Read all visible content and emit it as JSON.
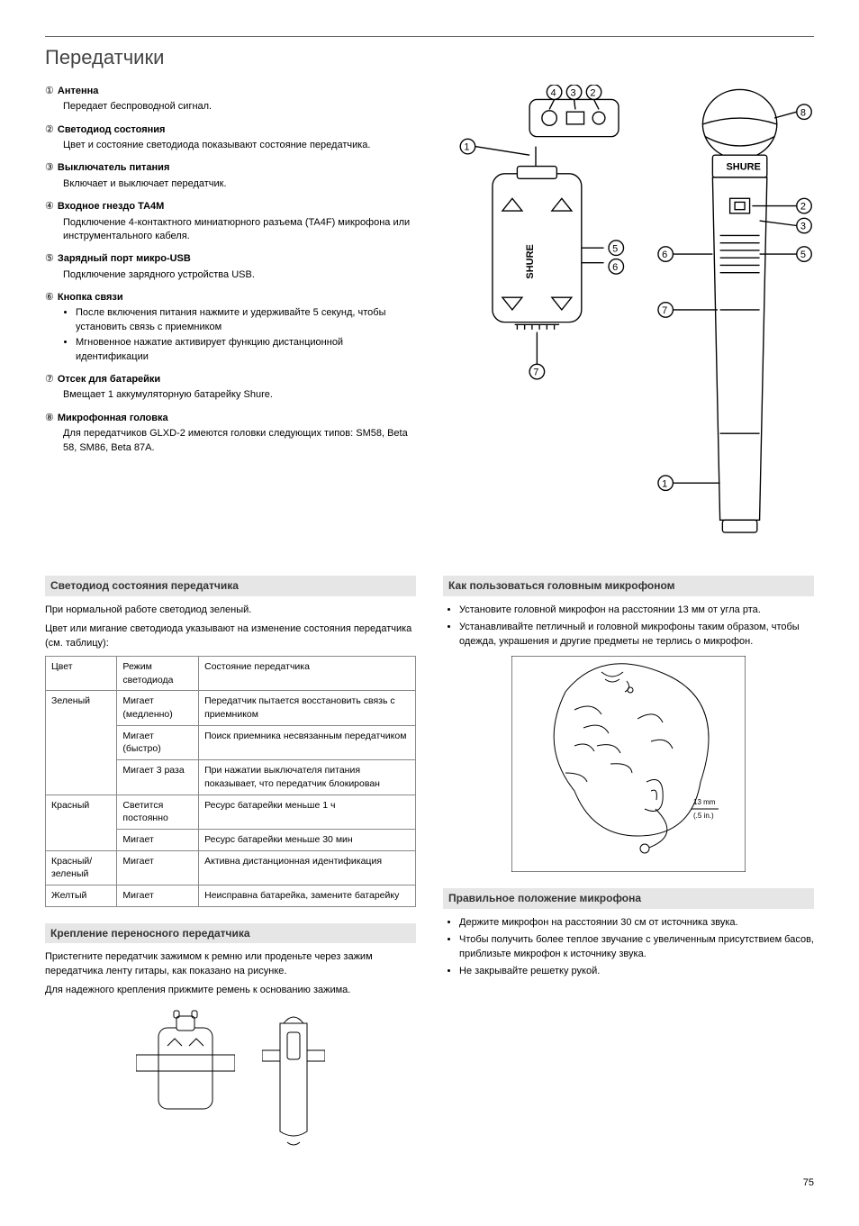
{
  "pageTitle": "Передатчики",
  "pageNumber": "75",
  "definitions": [
    {
      "num": "①",
      "title": "Антенна",
      "desc": "Передает беспроводной сигнал."
    },
    {
      "num": "②",
      "title": "Светодиод состояния",
      "desc": "Цвет и состояние светодиода показывают состояние передатчика."
    },
    {
      "num": "③",
      "title": "Выключатель питания",
      "desc": "Включает и выключает передатчик."
    },
    {
      "num": "④",
      "title": "Входное гнездо TA4M",
      "desc": "Подключение 4-контактного миниатюрного разъема (TA4F) микрофона или инструментального кабеля."
    },
    {
      "num": "⑤",
      "title": "Зарядный порт микро-USB",
      "desc": "Подключение зарядного устройства USB."
    },
    {
      "num": "⑥",
      "title": "Кнопка связи",
      "bullets": [
        "После включения питания нажмите и удерживайте 5 секунд, чтобы установить связь с приемником",
        "Мгновенное нажатие активирует функцию дистанционной идентификации"
      ]
    },
    {
      "num": "⑦",
      "title": "Отсек для батарейки",
      "desc": "Вмещает 1 аккумуляторную батарейку Shure."
    },
    {
      "num": "⑧",
      "title": "Микрофонная головка",
      "desc": "Для передатчиков GLXD-2 имеются головки следующих типов: SM58, Beta 58, SM86, Beta 87A."
    }
  ],
  "ledSection": {
    "heading": "Светодиод состояния передатчика",
    "p1": "При нормальной работе светодиод зеленый.",
    "p2": "Цвет или мигание светодиода указывают на изменение состояния передатчика (см. таблицу):",
    "headers": [
      "Цвет",
      "Режим светодиода",
      "Состояние передатчика"
    ],
    "rows": [
      {
        "color": "Зеленый",
        "mode": "Мигает (медленно)",
        "state": "Передатчик пытается восстановить связь с приемником",
        "rowspan": 3
      },
      {
        "mode": "Мигает (быстро)",
        "state": "Поиск приемника несвязанным передатчиком"
      },
      {
        "mode": "Мигает 3 раза",
        "state": "При нажатии выключателя питания показывает, что передатчик блокирован"
      },
      {
        "color": "Красный",
        "mode": "Светится постоянно",
        "state": "Ресурс батарейки меньше 1 ч",
        "rowspan": 2
      },
      {
        "mode": "Мигает",
        "state": "Ресурс батарейки меньше 30 мин"
      },
      {
        "color": "Красный/зеленый",
        "mode": "Мигает",
        "state": "Активна дистанционная идентификация"
      },
      {
        "color": "Желтый",
        "mode": "Мигает",
        "state": "Неисправна батарейка, замените батарейку"
      }
    ]
  },
  "clipSection": {
    "heading": "Крепление переносного передатчика",
    "p1": "Пристегните передатчик зажимом к ремню или проденьте через зажим передатчика ленту гитары, как показано на рисунке.",
    "p2": "Для надежного крепления прижмите ремень к основанию зажима."
  },
  "headsetSection": {
    "heading": "Как пользоваться головным микрофоном",
    "bullets": [
      "Установите головной микрофон на расстоянии 13 мм от угла рта.",
      "Устанавливайте петличный и головной микрофоны таким образом, чтобы одежда, украшения и другие предметы не терлись о микрофон."
    ],
    "figLabel1": "13 mm",
    "figLabel2": "(.5 in.)"
  },
  "positionSection": {
    "heading": "Правильное положение микрофона",
    "bullets": [
      "Держите микрофон на расстоянии 30 см от источника звука.",
      "Чтобы получить более теплое звучание с увеличенным присутствием басов, приблизьте микрофон к источнику звука.",
      "Не закрывайте решетку рукой."
    ]
  },
  "deviceBrand": "SHURE"
}
